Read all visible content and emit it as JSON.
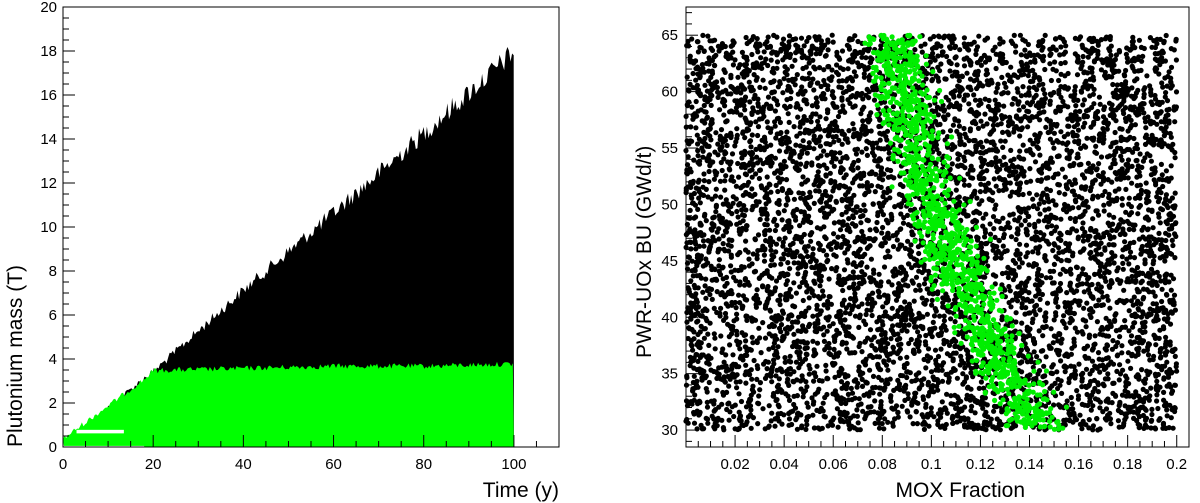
{
  "chart_data": [
    {
      "type": "area",
      "xlabel": "Time (y)",
      "ylabel": "Plutonium mass (T)",
      "xlim": [
        0,
        110
      ],
      "ylim": [
        0,
        20
      ],
      "x_ticks": [
        "0",
        "20",
        "40",
        "60",
        "80",
        "100"
      ],
      "y_ticks": [
        "0",
        "2",
        "4",
        "6",
        "8",
        "10",
        "12",
        "14",
        "16",
        "18",
        "20"
      ],
      "series": [
        {
          "color": "#000000",
          "x": [
            3,
            18,
            20,
            40,
            60,
            80,
            100
          ],
          "upper": [
            0.7,
            3.3,
            3.6,
            7.4,
            11.0,
            14.7,
            18.5
          ],
          "lower": [
            0.0,
            0.0,
            0.3,
            0.3,
            0.3,
            0.3,
            0.3
          ]
        },
        {
          "color": "#00ff00",
          "x": [
            0,
            18,
            20,
            40,
            60,
            80,
            100
          ],
          "upper": [
            0.5,
            3.2,
            3.6,
            3.7,
            3.8,
            3.8,
            3.9
          ],
          "lower": [
            0.0,
            0.0,
            0.0,
            0.0,
            0.0,
            0.0,
            0.0
          ]
        }
      ],
      "grid": false
    },
    {
      "type": "scatter",
      "xlabel": "MOX Fraction",
      "ylabel": "PWR-UOx BU (GWd/t)",
      "xlim": [
        0.0,
        0.205
      ],
      "ylim": [
        28.5,
        67.5
      ],
      "x_ticks": [
        "0.02",
        "0.04",
        "0.06",
        "0.08",
        "0.1",
        "0.12",
        "0.14",
        "0.16",
        "0.18",
        "0.2"
      ],
      "y_ticks": [
        "30",
        "35",
        "40",
        "45",
        "50",
        "55",
        "60",
        "65"
      ],
      "series": [
        {
          "color": "#000000",
          "x_range": [
            0.0,
            0.2
          ],
          "y_range": [
            30,
            65
          ]
        },
        {
          "color": "#00ee00",
          "x_center_at_y": [
            [
              65,
              0.085
            ],
            [
              55,
              0.093
            ],
            [
              45,
              0.11
            ],
            [
              35,
              0.13
            ],
            [
              30,
              0.145
            ]
          ],
          "y_range": [
            30,
            65
          ]
        }
      ],
      "grid": false
    }
  ]
}
